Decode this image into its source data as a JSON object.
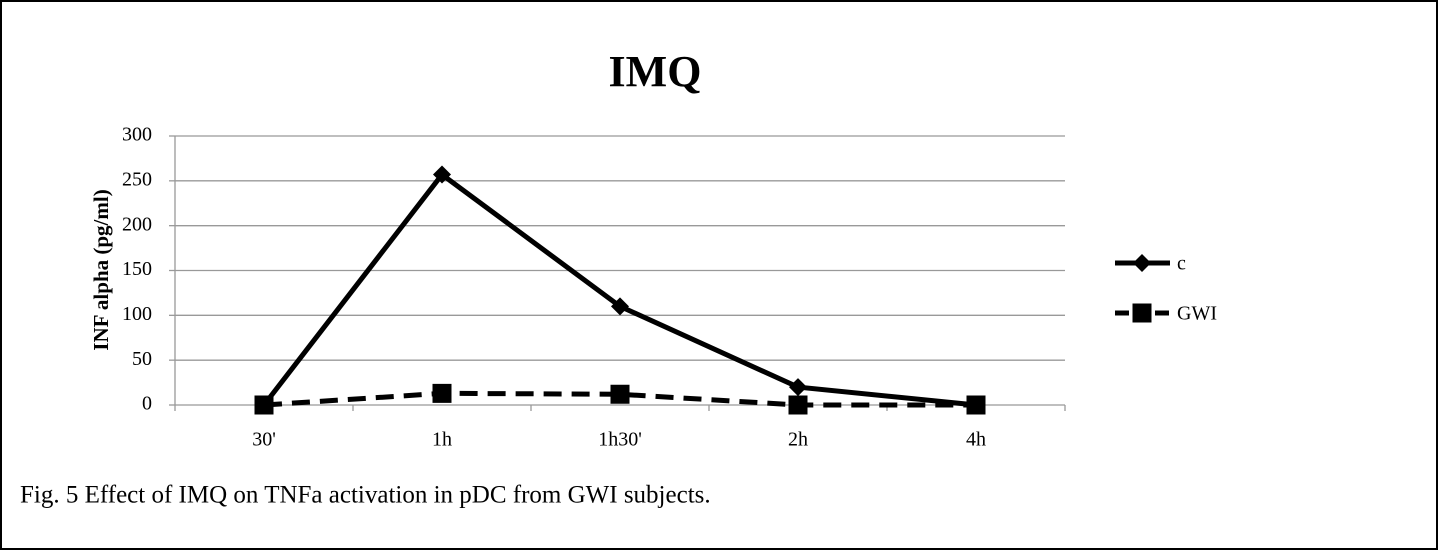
{
  "chart_data": {
    "type": "line",
    "title": "IMQ",
    "y_label": "INF alpha (pg/ml)",
    "categories": [
      "30'",
      "1h",
      "1h30'",
      "2h",
      "4h"
    ],
    "series": [
      {
        "name": "c",
        "color": "#000000",
        "dash": false,
        "marker": "diamond",
        "values": [
          0,
          257,
          110,
          20,
          0
        ]
      },
      {
        "name": "GWI",
        "color": "#000000",
        "dash": true,
        "marker": "square",
        "values": [
          0,
          13,
          12,
          0,
          0
        ]
      }
    ],
    "ylim": [
      0,
      300
    ],
    "yticks": [
      0,
      50,
      100,
      150,
      200,
      250,
      300
    ],
    "grid": true,
    "legend": "right",
    "caption": "Fig. 5 Effect of IMQ on TNFa activation in pDC from GWI subjects."
  }
}
